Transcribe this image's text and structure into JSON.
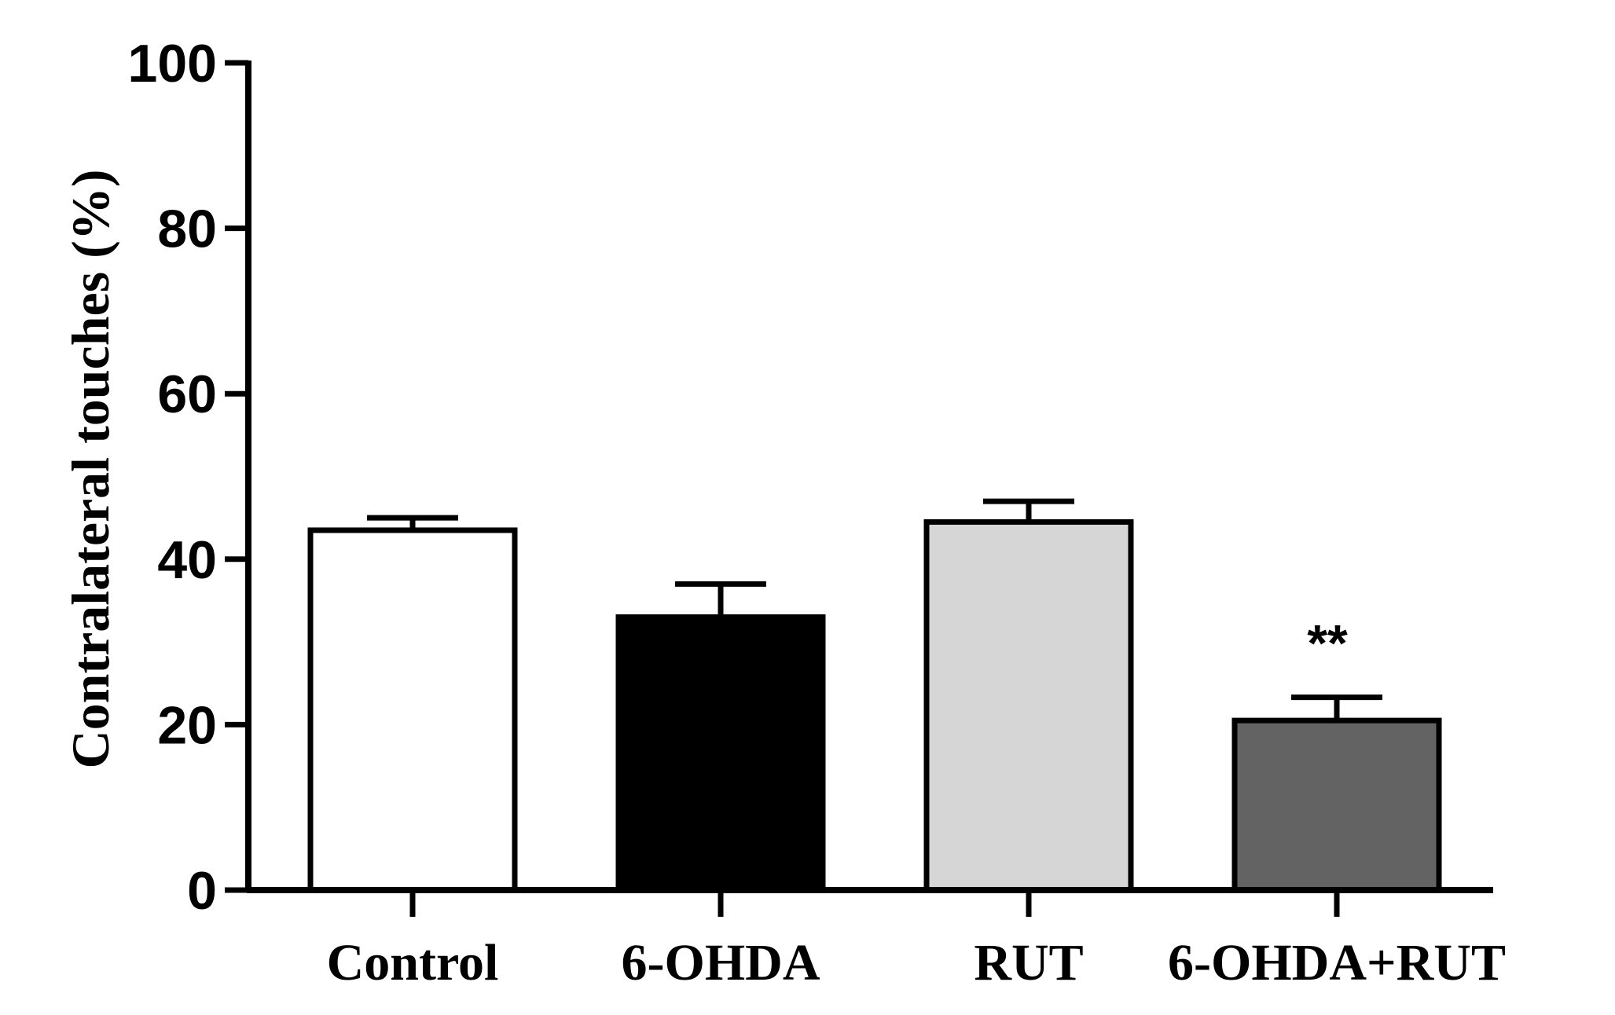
{
  "chart_data": {
    "type": "bar",
    "title": "",
    "xlabel": "",
    "ylabel": "Contralateral touches (%)",
    "ylim": [
      0,
      100
    ],
    "yticks": [
      0,
      20,
      40,
      60,
      80,
      100
    ],
    "grid": false,
    "categories": [
      "Control",
      "6-OHDA",
      "RUT",
      "6-OHDA+RUT"
    ],
    "values": [
      43.5,
      33.0,
      44.5,
      20.5
    ],
    "errors": [
      1.5,
      4.0,
      2.5,
      2.8
    ],
    "bar_colors": [
      "#ffffff",
      "#000000",
      "#d6d6d6",
      "#636363"
    ],
    "annotations": [
      {
        "category": "6-OHDA+RUT",
        "text": "**"
      }
    ]
  }
}
